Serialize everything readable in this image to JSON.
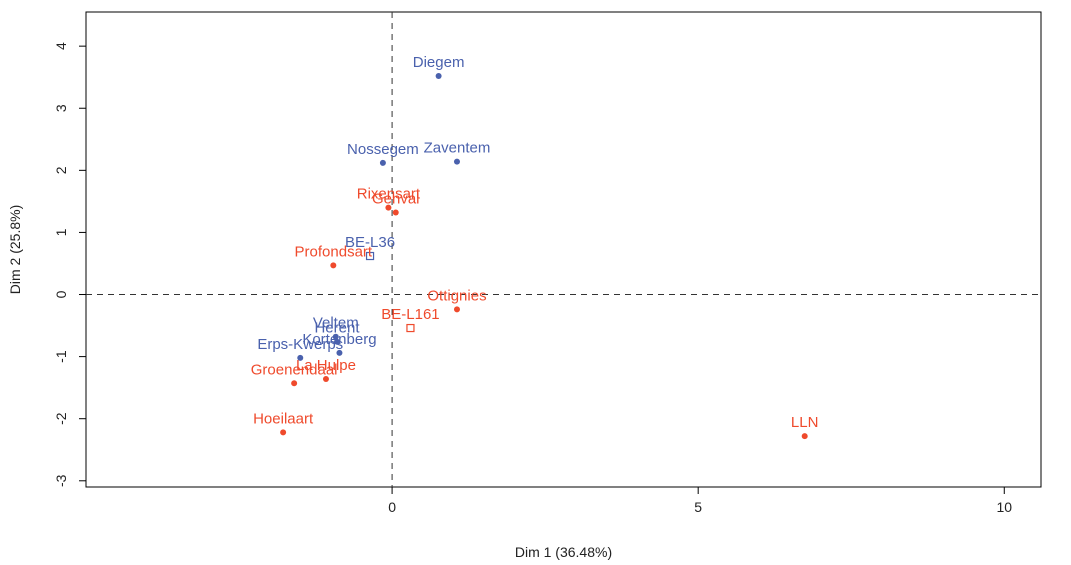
{
  "chart_data": {
    "type": "scatter",
    "title": "",
    "xlabel": "Dim 1 (36.48%)",
    "ylabel": "Dim 2 (25.8%)",
    "xlim": [
      -5,
      10.6
    ],
    "ylim": [
      -3.1,
      4.55
    ],
    "xticks": [
      0,
      5,
      10
    ],
    "yticks": [
      -3,
      -2,
      -1,
      0,
      1,
      2,
      3,
      4
    ],
    "grid": false,
    "reference_lines": {
      "x": 0,
      "y": 0,
      "style": "dashed"
    },
    "colors": {
      "individuals": "#4a61ad",
      "supplementary": "#ef4a2c"
    },
    "series": [
      {
        "group": "individuals",
        "color": "#4a61ad",
        "marker": "filled-circle",
        "points": [
          {
            "label": "Diegem",
            "x": 0.76,
            "y": 3.52
          },
          {
            "label": "Nossegem",
            "x": -0.15,
            "y": 2.12
          },
          {
            "label": "Zaventem",
            "x": 1.06,
            "y": 2.14
          },
          {
            "label": "Veltem",
            "x": -0.92,
            "y": -0.68
          },
          {
            "label": "Herent",
            "x": -0.9,
            "y": -0.76
          },
          {
            "label": "Kortenberg",
            "x": -0.86,
            "y": -0.94
          },
          {
            "label": "Erps-Kwerps",
            "x": -1.5,
            "y": -1.02
          }
        ]
      },
      {
        "group": "supplementary",
        "color": "#ef4a2c",
        "marker": "filled-circle",
        "points": [
          {
            "label": "Rixensart",
            "x": -0.06,
            "y": 1.4
          },
          {
            "label": "Genval",
            "x": 0.06,
            "y": 1.32
          },
          {
            "label": "Profondsart",
            "x": -0.96,
            "y": 0.47
          },
          {
            "label": "Ottignies",
            "x": 1.06,
            "y": -0.24
          },
          {
            "label": "La Hulpe",
            "x": -1.08,
            "y": -1.36
          },
          {
            "label": "Groenendaal",
            "x": -1.6,
            "y": -1.43
          },
          {
            "label": "Hoeilaart",
            "x": -1.78,
            "y": -2.22
          },
          {
            "label": "LLN",
            "x": 6.74,
            "y": -2.28
          }
        ]
      },
      {
        "group": "lines",
        "marker": "open-square",
        "points": [
          {
            "label": "BE-L36",
            "x": -0.36,
            "y": 0.62,
            "color": "#4a61ad"
          },
          {
            "label": "BE-L161",
            "x": 0.3,
            "y": -0.54,
            "color": "#ef4a2c"
          }
        ]
      }
    ]
  }
}
